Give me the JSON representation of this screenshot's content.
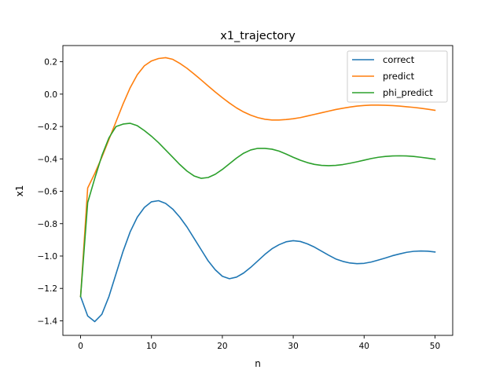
{
  "chart_data": {
    "type": "line",
    "title": "x1_trajectory",
    "xlabel": "n",
    "ylabel": "x1",
    "xlim": [
      -2.5,
      52.5
    ],
    "ylim": [
      -1.49,
      0.3
    ],
    "xticks": [
      0,
      10,
      20,
      30,
      40,
      50
    ],
    "xtick_labels": [
      "0",
      "10",
      "20",
      "30",
      "40",
      "50"
    ],
    "yticks": [
      -1.4,
      -1.2,
      -1.0,
      -0.8,
      -0.6,
      -0.4,
      -0.2,
      0.0,
      0.2
    ],
    "ytick_labels": [
      "−1.4",
      "−1.2",
      "−1.0",
      "−0.8",
      "−0.6",
      "−0.4",
      "−0.2",
      "0.0",
      "0.2"
    ],
    "grid": false,
    "legend_position": "top-right",
    "x": [
      0,
      1,
      2,
      3,
      4,
      5,
      6,
      7,
      8,
      9,
      10,
      11,
      12,
      13,
      14,
      15,
      16,
      17,
      18,
      19,
      20,
      21,
      22,
      23,
      24,
      25,
      26,
      27,
      28,
      29,
      30,
      31,
      32,
      33,
      34,
      35,
      36,
      37,
      38,
      39,
      40,
      41,
      42,
      43,
      44,
      45,
      46,
      47,
      48,
      49,
      50
    ],
    "series": [
      {
        "name": "correct",
        "color": "#1f77b4",
        "values": [
          -1.25,
          -1.37,
          -1.405,
          -1.36,
          -1.25,
          -1.11,
          -0.97,
          -0.85,
          -0.76,
          -0.7,
          -0.665,
          -0.658,
          -0.675,
          -0.71,
          -0.76,
          -0.82,
          -0.89,
          -0.96,
          -1.03,
          -1.085,
          -1.125,
          -1.14,
          -1.13,
          -1.105,
          -1.07,
          -1.03,
          -0.99,
          -0.955,
          -0.93,
          -0.912,
          -0.905,
          -0.91,
          -0.925,
          -0.945,
          -0.97,
          -0.995,
          -1.018,
          -1.033,
          -1.043,
          -1.047,
          -1.045,
          -1.037,
          -1.025,
          -1.012,
          -0.998,
          -0.987,
          -0.977,
          -0.971,
          -0.969,
          -0.97,
          -0.975
        ]
      },
      {
        "name": "predict",
        "color": "#ff7f0e",
        "values": [
          -1.25,
          -0.58,
          -0.49,
          -0.39,
          -0.28,
          -0.17,
          -0.06,
          0.04,
          0.12,
          0.175,
          0.205,
          0.22,
          0.225,
          0.215,
          0.19,
          0.16,
          0.125,
          0.088,
          0.05,
          0.013,
          -0.022,
          -0.055,
          -0.085,
          -0.11,
          -0.13,
          -0.145,
          -0.155,
          -0.16,
          -0.16,
          -0.157,
          -0.152,
          -0.145,
          -0.135,
          -0.125,
          -0.115,
          -0.105,
          -0.095,
          -0.087,
          -0.08,
          -0.074,
          -0.07,
          -0.068,
          -0.068,
          -0.069,
          -0.071,
          -0.074,
          -0.078,
          -0.082,
          -0.087,
          -0.093,
          -0.1
        ]
      },
      {
        "name": "phi_predict",
        "color": "#2ca02c",
        "values": [
          -1.25,
          -0.67,
          -0.52,
          -0.38,
          -0.27,
          -0.2,
          -0.185,
          -0.18,
          -0.195,
          -0.225,
          -0.26,
          -0.3,
          -0.345,
          -0.39,
          -0.435,
          -0.475,
          -0.505,
          -0.52,
          -0.515,
          -0.495,
          -0.465,
          -0.43,
          -0.395,
          -0.365,
          -0.345,
          -0.335,
          -0.335,
          -0.34,
          -0.352,
          -0.37,
          -0.39,
          -0.408,
          -0.423,
          -0.434,
          -0.44,
          -0.442,
          -0.44,
          -0.435,
          -0.427,
          -0.418,
          -0.408,
          -0.398,
          -0.39,
          -0.385,
          -0.382,
          -0.381,
          -0.382,
          -0.385,
          -0.39,
          -0.396,
          -0.402
        ]
      }
    ]
  }
}
